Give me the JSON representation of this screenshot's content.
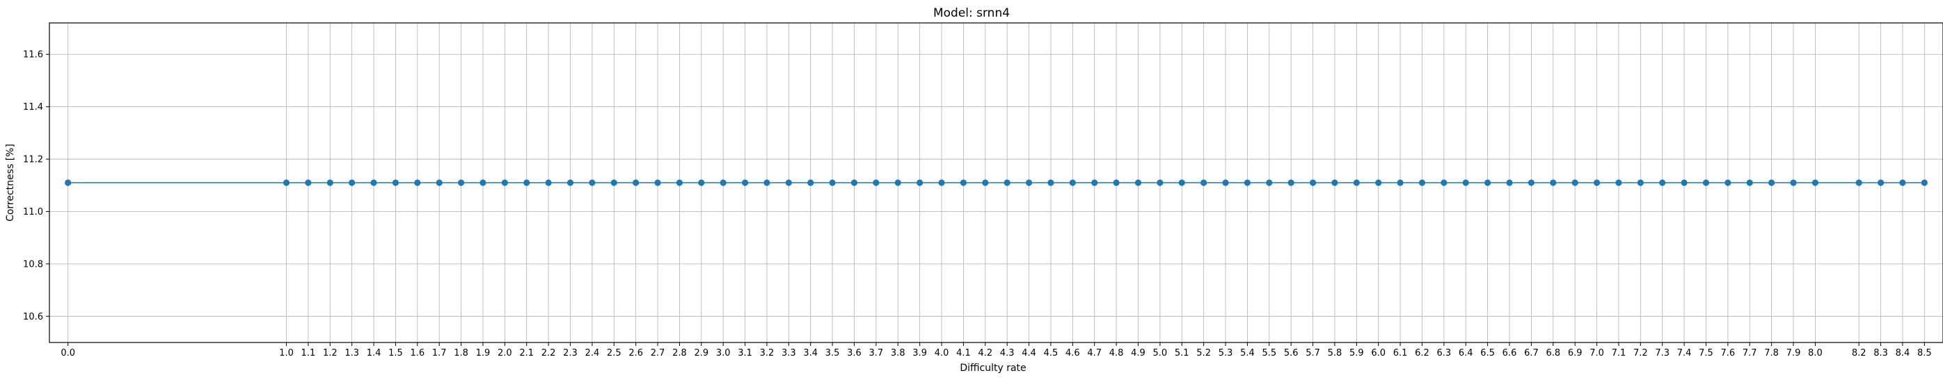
{
  "chart_data": {
    "type": "line",
    "title": "Model: srnn4",
    "xlabel": "Difficulty rate",
    "ylabel": "Correctness [%]",
    "x": [
      0.0,
      1.0,
      1.1,
      1.2,
      1.3,
      1.4,
      1.5,
      1.6,
      1.7,
      1.8,
      1.9,
      2.0,
      2.1,
      2.2,
      2.3,
      2.4,
      2.5,
      2.6,
      2.7,
      2.8,
      2.9,
      3.0,
      3.1,
      3.2,
      3.3,
      3.4,
      3.5,
      3.6,
      3.7,
      3.8,
      3.9,
      4.0,
      4.1,
      4.2,
      4.3,
      4.4,
      4.5,
      4.6,
      4.7,
      4.8,
      4.9,
      5.0,
      5.1,
      5.2,
      5.3,
      5.4,
      5.5,
      5.6,
      5.7,
      5.8,
      5.9,
      6.0,
      6.1,
      6.2,
      6.3,
      6.4,
      6.5,
      6.6,
      6.7,
      6.8,
      6.9,
      7.0,
      7.1,
      7.2,
      7.3,
      7.4,
      7.5,
      7.6,
      7.7,
      7.8,
      7.9,
      8.0,
      8.2,
      8.3,
      8.4,
      8.5
    ],
    "xtick_labels": [
      "0.0",
      "1.0",
      "1.1",
      "1.2",
      "1.3",
      "1.4",
      "1.5",
      "1.6",
      "1.7",
      "1.8",
      "1.9",
      "2.0",
      "2.1",
      "2.2",
      "2.3",
      "2.4",
      "2.5",
      "2.6",
      "2.7",
      "2.8",
      "2.9",
      "3.0",
      "3.1",
      "3.2",
      "3.3",
      "3.4",
      "3.5",
      "3.6",
      "3.7",
      "3.8",
      "3.9",
      "4.0",
      "4.1",
      "4.2",
      "4.3",
      "4.4",
      "4.5",
      "4.6",
      "4.7",
      "4.8",
      "4.9",
      "5.0",
      "5.1",
      "5.2",
      "5.3",
      "5.4",
      "5.5",
      "5.6",
      "5.7",
      "5.8",
      "5.9",
      "6.0",
      "6.1",
      "6.2",
      "6.3",
      "6.4",
      "6.5",
      "6.6",
      "6.7",
      "6.8",
      "6.9",
      "7.0",
      "7.1",
      "7.2",
      "7.3",
      "7.4",
      "7.5",
      "7.6",
      "7.7",
      "7.8",
      "7.9",
      "8.0",
      "8.2",
      "8.3",
      "8.4",
      "8.5"
    ],
    "y_constant": 11.11,
    "yticks": [
      10.6,
      10.8,
      11.0,
      11.2,
      11.4,
      11.6
    ],
    "ytick_labels": [
      "10.6",
      "10.8",
      "11.0",
      "11.2",
      "11.4",
      "11.6"
    ],
    "xlim": [
      -0.085,
      8.585
    ],
    "ylim": [
      10.5,
      11.72
    ],
    "grid": true,
    "marker": "circle",
    "line_color": "#1f77b4",
    "marker_color": "#1f77b4",
    "grid_color": "#b0b0b0",
    "axes_color": "#000000"
  }
}
